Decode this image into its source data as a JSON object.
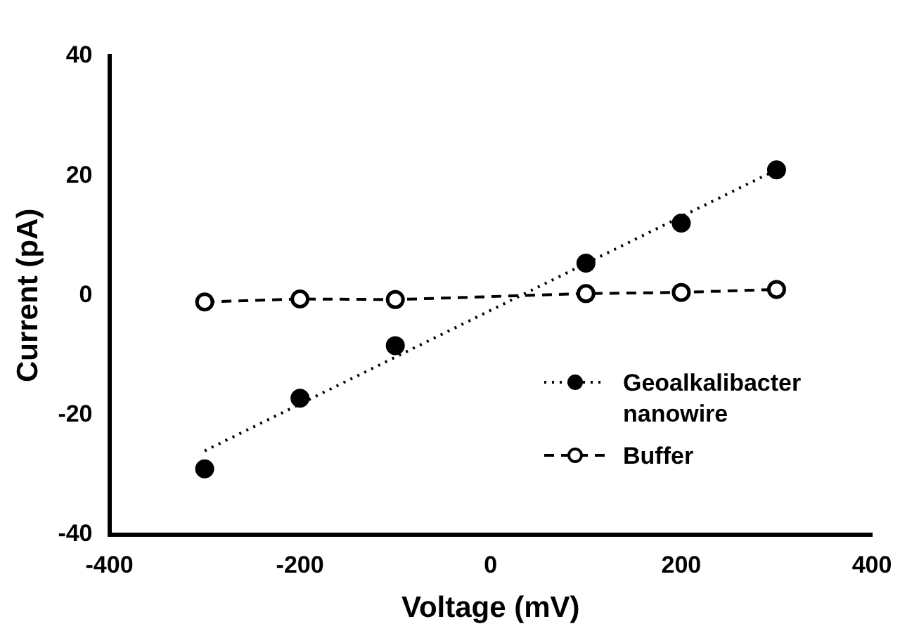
{
  "chart_data": {
    "type": "line",
    "xlabel": "Voltage (mV)",
    "ylabel": "Current (pA)",
    "xlim": [
      -400,
      400
    ],
    "xticks": [
      -400,
      -200,
      0,
      200,
      400
    ],
    "ylim": [
      -40,
      40
    ],
    "yticks": [
      -40,
      -20,
      0,
      20,
      40
    ],
    "grid": false,
    "legend": "bottom right",
    "series": [
      {
        "name": "Geoalkalibacter nanowire",
        "type": "scatter",
        "color": "#000000",
        "marker": "circle",
        "x": [
          -300,
          -200,
          -100,
          100,
          200,
          300
        ],
        "values": [
          -29,
          -17.2,
          -8.4,
          5.4,
          12.1,
          21
        ]
      },
      {
        "color": "#000000",
        "marker": "none",
        "line_style": "dotted",
        "x": [
          -300,
          300
        ],
        "values": [
          -26,
          21
        ]
      },
      {
        "name": "Buffer",
        "color": "#000000",
        "marker": "circle",
        "line_style": "dashed",
        "x": [
          -300,
          -200,
          -100,
          100,
          200,
          300
        ],
        "values": [
          -1.1,
          -0.6,
          -0.7,
          0.3,
          0.5,
          1
        ]
      }
    ]
  }
}
